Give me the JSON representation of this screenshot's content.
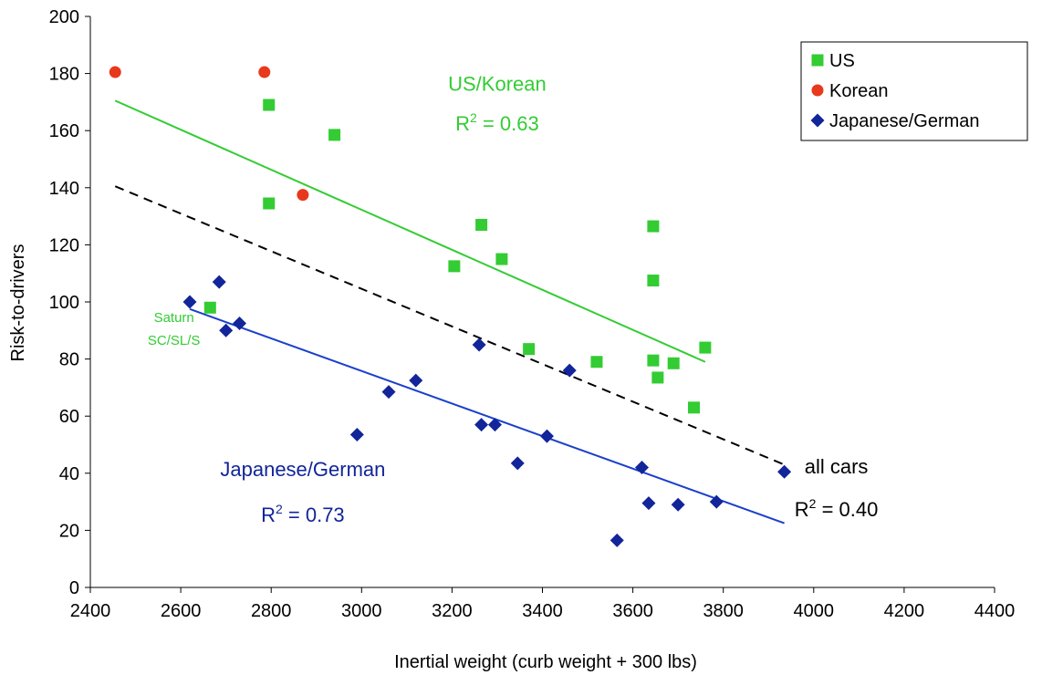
{
  "chart_data": {
    "type": "scatter",
    "xlabel": "Inertial weight (curb weight + 300 lbs)",
    "ylabel": "Risk-to-drivers",
    "xlim": [
      2400,
      4400
    ],
    "ylim": [
      0,
      200
    ],
    "x_ticks": [
      2400,
      2600,
      2800,
      3000,
      3200,
      3400,
      3600,
      3800,
      4000,
      4200,
      4400
    ],
    "y_ticks": [
      0,
      20,
      40,
      60,
      80,
      100,
      120,
      140,
      160,
      180,
      200
    ],
    "grid": false,
    "legend_position": "top-right",
    "series": [
      {
        "name": "US",
        "marker": "square",
        "color": "#33cc33",
        "points": [
          [
            2665,
            98
          ],
          [
            2795,
            169
          ],
          [
            2795,
            134.5
          ],
          [
            2940,
            158.5
          ],
          [
            3205,
            112.5
          ],
          [
            3265,
            127
          ],
          [
            3310,
            115
          ],
          [
            3370,
            83.5
          ],
          [
            3520,
            79
          ],
          [
            3645,
            126.5
          ],
          [
            3645,
            107.5
          ],
          [
            3645,
            79.5
          ],
          [
            3655,
            73.5
          ],
          [
            3690,
            78.5
          ],
          [
            3735,
            63
          ],
          [
            3760,
            84
          ]
        ]
      },
      {
        "name": "Korean",
        "marker": "circle",
        "color": "#e8391c",
        "points": [
          [
            2455,
            180.5
          ],
          [
            2785,
            180.5
          ],
          [
            2870,
            137.5
          ]
        ]
      },
      {
        "name": "Japanese/German",
        "marker": "diamond",
        "color": "#12259a",
        "points": [
          [
            2620,
            100
          ],
          [
            2685,
            107
          ],
          [
            2700,
            90
          ],
          [
            2730,
            92.5
          ],
          [
            2990,
            53.5
          ],
          [
            3060,
            68.5
          ],
          [
            3120,
            72.5
          ],
          [
            3260,
            85
          ],
          [
            3265,
            57
          ],
          [
            3295,
            57
          ],
          [
            3345,
            43.5
          ],
          [
            3410,
            53
          ],
          [
            3460,
            76
          ],
          [
            3565,
            16.5
          ],
          [
            3620,
            42
          ],
          [
            3635,
            29.5
          ],
          [
            3700,
            29
          ],
          [
            3785,
            30
          ],
          [
            3935,
            40.5
          ]
        ]
      }
    ],
    "trendlines": [
      {
        "group": "US/Korean",
        "color": "#33cc33",
        "style": "solid",
        "from": [
          2455,
          170.5
        ],
        "to": [
          3760,
          79
        ]
      },
      {
        "group": "all cars",
        "color": "#000000",
        "style": "dashed",
        "from": [
          2455,
          140.5
        ],
        "to": [
          3935,
          43
        ]
      },
      {
        "group": "Japanese/German",
        "color": "#1a3fcc",
        "style": "solid",
        "from": [
          2620,
          97.5
        ],
        "to": [
          3935,
          22.5
        ]
      }
    ],
    "annotations": [
      {
        "id": "us-korean",
        "title": "US/Korean",
        "r2_label": "R",
        "r2_value": " = 0.63",
        "color": "#33cc33",
        "x": 3300,
        "y_title": 174,
        "y_r2": 160
      },
      {
        "id": "saturn",
        "line1": "Saturn",
        "line2": "SC/SL/S",
        "color": "#33cc33",
        "x": 2585,
        "y_line1": 93,
        "y_line2": 85
      },
      {
        "id": "japanese-german",
        "title": "Japanese/German",
        "r2_label": "R",
        "r2_value": " = 0.73",
        "color": "#12259a",
        "x": 2870,
        "y_title": 39,
        "y_r2": 23
      },
      {
        "id": "all-cars",
        "title": "all cars",
        "r2_label": "R",
        "r2_value": " = 0.40",
        "color": "#000000",
        "x": 4050,
        "y_title": 40,
        "y_r2": 25
      }
    ],
    "superscript": "2"
  }
}
